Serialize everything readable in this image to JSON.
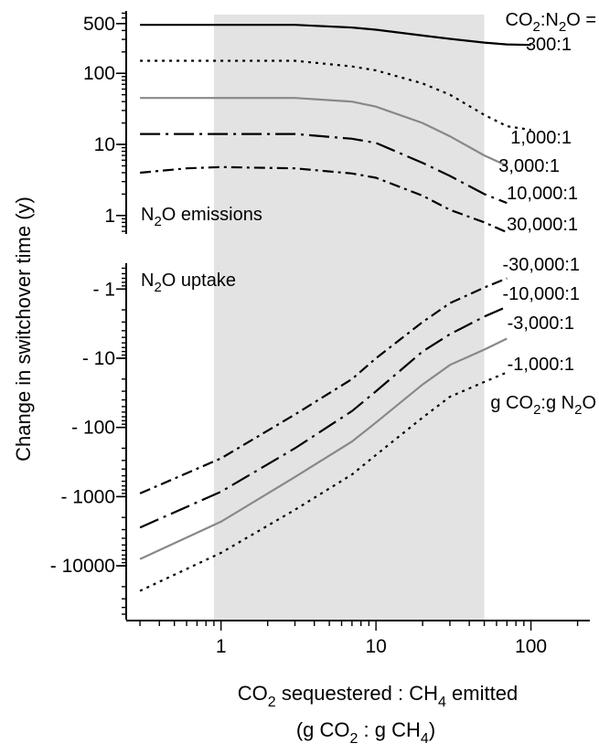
{
  "chart_data": {
    "type": "line",
    "xlabel": {
      "line1_a": "CO",
      "line1_sub": "2",
      "line1_b": " sequestered : CH",
      "line1_sub2": "4",
      "line1_c": " emitted",
      "line2_a": "(g CO",
      "line2_sub": "2",
      "line2_b": " : g CH",
      "line2_sub2": "4",
      "line2_c": ")"
    },
    "ylabel": "Change in switchover time (y)",
    "x_scale": "log",
    "xlim": [
      0.28,
      240
    ],
    "x_ticks": [
      {
        "value": 1,
        "label": "1"
      },
      {
        "value": 10,
        "label": "10"
      },
      {
        "value": 100,
        "label": "100"
      }
    ],
    "shaded_region_x": [
      0.9,
      50
    ],
    "shade_color": "#e3e3e3",
    "panels": [
      {
        "name": "emissions",
        "label_a": "N",
        "label_sub": "2",
        "label_b": "O emissions",
        "y_scale": "log",
        "ylim": [
          0.55,
          560
        ],
        "y_ticks": [
          {
            "value": 500,
            "label": "500"
          },
          {
            "value": 100,
            "label": "100"
          },
          {
            "value": 10,
            "label": "10"
          },
          {
            "value": 1,
            "label": "1"
          }
        ],
        "series": [
          {
            "label": "300:1",
            "style": "solid",
            "color": "#000000",
            "x": [
              0.3,
              1,
              3,
              7,
              10,
              20,
              30,
              50,
              70,
              100
            ],
            "y": [
              480,
              480,
              480,
              440,
              410,
              340,
              305,
              270,
              255,
              250
            ]
          },
          {
            "label": "1,000:1",
            "style": "dotted",
            "color": "#000000",
            "x": [
              0.3,
              1,
              3,
              7,
              10,
              20,
              30,
              50,
              70,
              100
            ],
            "y": [
              150,
              150,
              150,
              125,
              110,
              72,
              50,
              26,
              18,
              16
            ]
          },
          {
            "label": "3,000:1",
            "style": "solid",
            "color": "#888888",
            "x": [
              0.3,
              1,
              3,
              7,
              10,
              20,
              30,
              50,
              70
            ],
            "y": [
              45,
              45,
              45,
              40,
              34,
              20,
              13,
              7,
              5
            ]
          },
          {
            "label": "10,000:1",
            "style": "dashdot-long",
            "color": "#000000",
            "x": [
              0.3,
              1,
              3,
              7,
              10,
              20,
              30,
              50,
              70
            ],
            "y": [
              14,
              14,
              14,
              12,
              10.5,
              5.5,
              3.6,
              2.0,
              1.5
            ]
          },
          {
            "label": "30,000:1",
            "style": "dashdot",
            "color": "#000000",
            "x": [
              0.3,
              0.6,
              1,
              3,
              7,
              10,
              20,
              30,
              50,
              70
            ],
            "y": [
              4.0,
              4.6,
              4.8,
              4.6,
              3.9,
              3.4,
              1.9,
              1.2,
              0.8,
              0.58
            ]
          }
        ],
        "header_a": "CO",
        "header_sub": "2",
        "header_b": ":N",
        "header_sub2": "2",
        "header_c": "O ="
      },
      {
        "name": "uptake",
        "label_a": "N",
        "label_sub": "2",
        "label_b": "O uptake",
        "y_scale": "log-negative",
        "ylim": [
          -0.45,
          -60000
        ],
        "y_ticks": [
          {
            "value": -1,
            "label": "- 1"
          },
          {
            "value": -10,
            "label": "- 10"
          },
          {
            "value": -100,
            "label": "- 100"
          },
          {
            "value": -1000,
            "label": "- 1000"
          },
          {
            "value": -10000,
            "label": "- 10000"
          }
        ],
        "series": [
          {
            "label": "-30,000:1",
            "style": "dashdot",
            "color": "#000000",
            "x": [
              0.3,
              1,
              3,
              7,
              10,
              20,
              30,
              50,
              70
            ],
            "y": [
              -900,
              -280,
              -65,
              -20,
              -10,
              -3.0,
              -1.6,
              -0.95,
              -0.7
            ]
          },
          {
            "label": "-10,000:1",
            "style": "dashdot-long",
            "color": "#000000",
            "x": [
              0.3,
              1,
              3,
              7,
              10,
              20,
              30,
              50,
              70
            ],
            "y": [
              -2800,
              -850,
              -200,
              -58,
              -30,
              -8.0,
              -4.5,
              -2.5,
              -1.8
            ]
          },
          {
            "label": "-3,000:1",
            "style": "solid",
            "color": "#888888",
            "x": [
              0.3,
              1,
              3,
              7,
              10,
              20,
              30,
              50,
              70
            ],
            "y": [
              -8000,
              -2300,
              -520,
              -160,
              -85,
              -24,
              -12.5,
              -7.5,
              -5.2
            ]
          },
          {
            "label": "-1,000:1",
            "style": "dotted",
            "color": "#000000",
            "x": [
              0.3,
              1,
              3,
              7,
              10,
              20,
              30,
              50,
              70
            ],
            "y": [
              -23000,
              -6500,
              -1550,
              -480,
              -250,
              -72,
              -36,
              -22,
              -16
            ]
          }
        ],
        "footer_a": "g CO",
        "footer_sub": "2",
        "footer_b": ":g N",
        "footer_sub2": "2",
        "footer_c": "O"
      }
    ],
    "grid": false,
    "legend": "direct labels at right"
  }
}
